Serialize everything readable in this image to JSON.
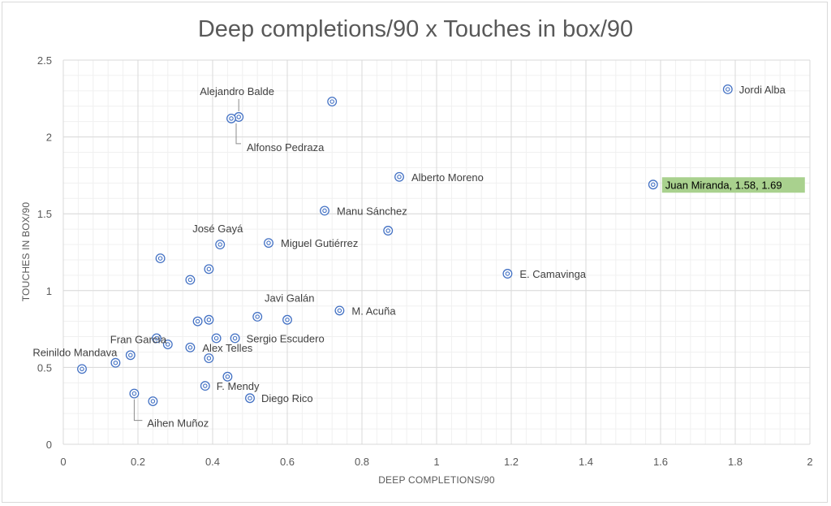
{
  "chart_data": {
    "type": "scatter",
    "title": "Deep completions/90 x Touches in box/90",
    "xlabel": "DEEP COMPLETIONS/90",
    "ylabel": "TOUCHES IN BOX/90",
    "xlim": [
      0,
      2
    ],
    "ylim": [
      0,
      2.5
    ],
    "xticks": [
      0,
      0.2,
      0.4,
      0.6,
      0.8,
      1,
      1.2,
      1.4,
      1.6,
      1.8,
      2
    ],
    "xtick_labels": [
      "0",
      "0.2",
      "0.4",
      "0.6",
      "0.8",
      "1",
      "1.2",
      "1.4",
      "1.6",
      "1.8",
      "2"
    ],
    "yticks": [
      0,
      0.5,
      1,
      1.5,
      2,
      2.5
    ],
    "ytick_labels": [
      "0",
      "0.5",
      "1",
      "1.5",
      "2",
      "2.5"
    ],
    "grid": true,
    "marker_color": "#4472c4",
    "highlight_color": "#a9d18e",
    "points": [
      {
        "x": 1.78,
        "y": 2.31,
        "label": "Jordi Alba"
      },
      {
        "x": 1.58,
        "y": 1.69,
        "label": "Juan Miranda, 1.58, 1.69",
        "highlight": true
      },
      {
        "x": 1.19,
        "y": 1.11,
        "label": "E. Camavinga"
      },
      {
        "x": 0.9,
        "y": 1.74,
        "label": "Alberto Moreno"
      },
      {
        "x": 0.87,
        "y": 1.39,
        "label": ""
      },
      {
        "x": 0.72,
        "y": 2.23,
        "label": ""
      },
      {
        "x": 0.7,
        "y": 1.52,
        "label": "Manu Sánchez"
      },
      {
        "x": 0.74,
        "y": 0.87,
        "label": "M. Acuña"
      },
      {
        "x": 0.6,
        "y": 0.81,
        "label": "Javi Galán"
      },
      {
        "x": 0.55,
        "y": 1.31,
        "label": "Miguel Gutiérrez"
      },
      {
        "x": 0.52,
        "y": 0.83,
        "label": ""
      },
      {
        "x": 0.5,
        "y": 0.3,
        "label": "Diego Rico"
      },
      {
        "x": 0.47,
        "y": 2.13,
        "label": "Alejandro Balde"
      },
      {
        "x": 0.45,
        "y": 2.12,
        "label": "Alfonso Pedraza"
      },
      {
        "x": 0.46,
        "y": 0.69,
        "label": "Sergio Escudero"
      },
      {
        "x": 0.44,
        "y": 0.44,
        "label": ""
      },
      {
        "x": 0.42,
        "y": 1.3,
        "label": "José Gayá"
      },
      {
        "x": 0.41,
        "y": 0.69,
        "label": ""
      },
      {
        "x": 0.39,
        "y": 1.14,
        "label": ""
      },
      {
        "x": 0.39,
        "y": 0.81,
        "label": ""
      },
      {
        "x": 0.39,
        "y": 0.56,
        "label": ""
      },
      {
        "x": 0.38,
        "y": 0.38,
        "label": "F. Mendy"
      },
      {
        "x": 0.36,
        "y": 0.8,
        "label": ""
      },
      {
        "x": 0.34,
        "y": 1.07,
        "label": ""
      },
      {
        "x": 0.34,
        "y": 0.63,
        "label": "Alex Telles"
      },
      {
        "x": 0.28,
        "y": 0.65,
        "label": ""
      },
      {
        "x": 0.26,
        "y": 1.21,
        "label": ""
      },
      {
        "x": 0.25,
        "y": 0.69,
        "label": ""
      },
      {
        "x": 0.24,
        "y": 0.28,
        "label": ""
      },
      {
        "x": 0.19,
        "y": 0.33,
        "label": "Aihen Muñoz"
      },
      {
        "x": 0.18,
        "y": 0.58,
        "label": "Fran García"
      },
      {
        "x": 0.14,
        "y": 0.53,
        "label": "Reinildo Mandava"
      },
      {
        "x": 0.05,
        "y": 0.49,
        "label": ""
      }
    ]
  }
}
